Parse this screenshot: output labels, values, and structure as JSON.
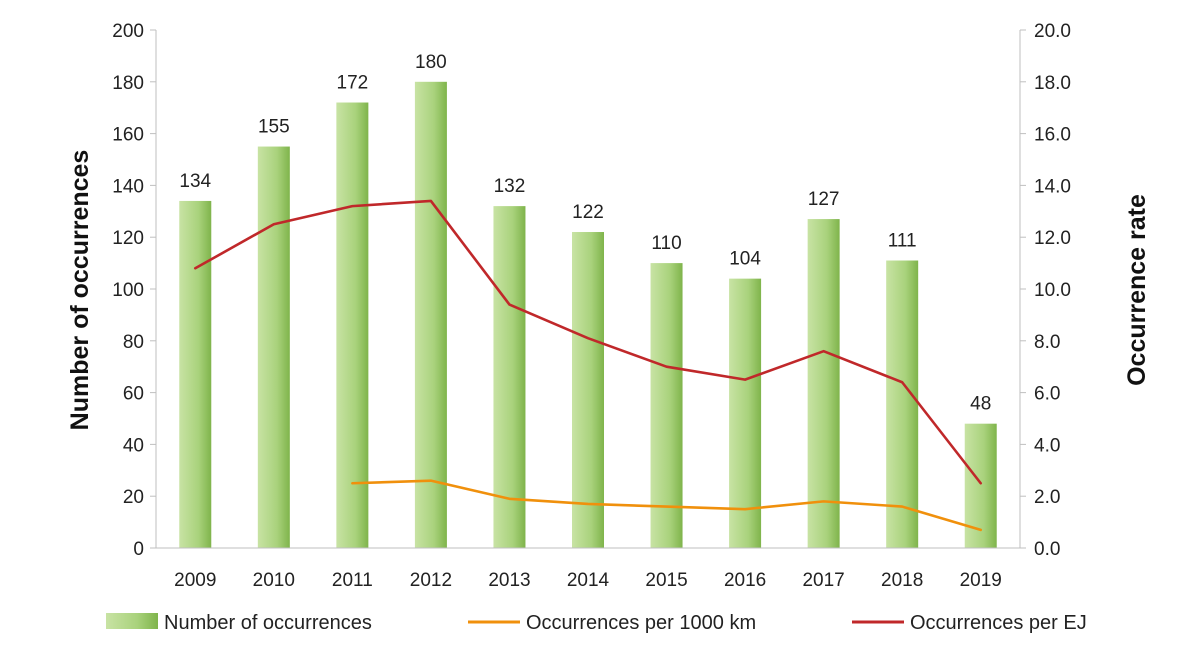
{
  "chart_data": {
    "type": "bar",
    "categories": [
      "2009",
      "2010",
      "2011",
      "2012",
      "2013",
      "2014",
      "2015",
      "2016",
      "2017",
      "2018",
      "2019"
    ],
    "series": [
      {
        "name": "Number of occurrences",
        "type": "bar",
        "axis": "left",
        "values": [
          134,
          155,
          172,
          180,
          132,
          122,
          110,
          104,
          127,
          111,
          48
        ],
        "color": "#9dcc6b"
      },
      {
        "name": "Occurrences per 1000 km",
        "type": "line",
        "axis": "right",
        "values": [
          null,
          null,
          2.5,
          2.6,
          1.9,
          1.7,
          1.6,
          1.5,
          1.8,
          1.6,
          0.7
        ],
        "color": "#f0900c"
      },
      {
        "name": "Occurrences per EJ",
        "type": "line",
        "axis": "right",
        "values": [
          10.8,
          12.5,
          13.2,
          13.4,
          9.4,
          8.1,
          7.0,
          6.5,
          7.6,
          6.4,
          2.5
        ],
        "color": "#c0282a"
      }
    ],
    "data_labels": [
      "134",
      "155",
      "172",
      "180",
      "132",
      "122",
      "110",
      "104",
      "127",
      "111",
      "48"
    ],
    "ylabel": "Number of occurrences",
    "y2label": "Occurrence rate",
    "ylim": [
      0,
      200
    ],
    "y2lim": [
      0,
      20
    ],
    "yticks": [
      "0",
      "20",
      "40",
      "60",
      "80",
      "100",
      "120",
      "140",
      "160",
      "180",
      "200"
    ],
    "y2ticks": [
      "0.0",
      "2.0",
      "4.0",
      "6.0",
      "8.0",
      "10.0",
      "12.0",
      "14.0",
      "16.0",
      "18.0",
      "20.0"
    ],
    "grid": false,
    "legend_position": "bottom"
  }
}
